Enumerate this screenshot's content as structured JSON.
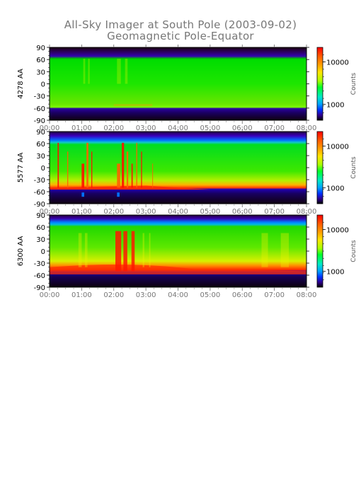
{
  "title": "All-Sky Imager at South Pole (2003-09-02)",
  "subtitle": "Geomagnetic Pole-Equator",
  "chart_data": {
    "type": "heatmap",
    "x_tick_labels": [
      "00:00",
      "01:00",
      "02:00",
      "03:00",
      "04:00",
      "05:00",
      "06:00",
      "07:00",
      "08:00"
    ],
    "x_range": [
      "00:00",
      "08:00"
    ],
    "y_ticks": [
      90,
      60,
      30,
      0,
      -30,
      -60,
      -90
    ],
    "ylim": [
      -90,
      90
    ],
    "colorbar": {
      "label": "Counts",
      "scale": "log",
      "tick_labels": [
        "10000",
        "1000"
      ]
    },
    "panels": [
      {
        "ylabel": "4278 AA",
        "cbar_range": [
          300,
          20000
        ],
        "description_values": {
          "upper_dark_boundary_deg": 60,
          "lower_dark_boundary_deg": -55
        }
      },
      {
        "ylabel": "5577 AA",
        "cbar_range": [
          300,
          20000
        ],
        "description_values": {
          "upper_dark_boundary_deg": 60,
          "lower_dark_boundary_deg": -55
        }
      },
      {
        "ylabel": "6300 AA",
        "cbar_range": [
          300,
          20000
        ],
        "description_values": {
          "upper_dark_boundary_deg": 60,
          "lower_dark_boundary_deg": -55
        }
      }
    ]
  }
}
